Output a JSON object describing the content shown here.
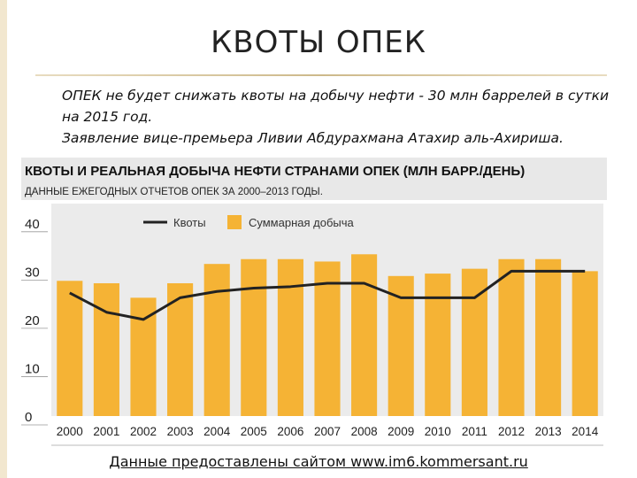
{
  "slide": {
    "title": "КВОТЫ ОПЕК",
    "paragraph_1": "ОПЕК не будет снижать квоты на добычу нефти - 30 млн баррелей в сутки на 2015 год.",
    "paragraph_2": "Заявление вице-премьера Ливии Абдурахмана Атахир аль-Ахириша.",
    "footer": "Данные предоставлены сайтом www.im6.kommersant.ru"
  },
  "colors": {
    "bar": "#f5b335",
    "line": "#222222",
    "header_bg": "#e8e8e8",
    "plot_bg": "#ebebeb",
    "axis_bg": "#ffffff"
  },
  "chart_data": {
    "type": "bar",
    "title": "КВОТЫ И РЕАЛЬНАЯ ДОБЫЧА НЕФТИ СТРАНАМИ ОПЕК (МЛН БАРР./ДЕНЬ)",
    "subtitle": "ДАННЫЕ ЕЖЕГОДНЫХ ОТЧЕТОВ ОПЕК ЗА 2000–2013 ГОДЫ.",
    "categories": [
      "2000",
      "2001",
      "2002",
      "2003",
      "2004",
      "2005",
      "2006",
      "2007",
      "2008",
      "2009",
      "2010",
      "2011",
      "2012",
      "2013",
      "2014"
    ],
    "y_ticks": [
      "40",
      "30",
      "20",
      "10",
      "0"
    ],
    "ylim": [
      0,
      44
    ],
    "series": [
      {
        "name": "Суммарная добыча",
        "type": "bar",
        "values": [
          28,
          27.5,
          24.5,
          27.5,
          31.5,
          32.5,
          32.5,
          32,
          33.5,
          29,
          29.5,
          30.5,
          32.5,
          32.5,
          30
        ]
      },
      {
        "name": "Квоты",
        "type": "line",
        "values": [
          25.5,
          21.5,
          20,
          24.5,
          25.8,
          26.5,
          26.8,
          27.5,
          27.5,
          24.5,
          24.5,
          24.5,
          30,
          30,
          30
        ]
      }
    ],
    "legend": "top",
    "grid": false
  }
}
